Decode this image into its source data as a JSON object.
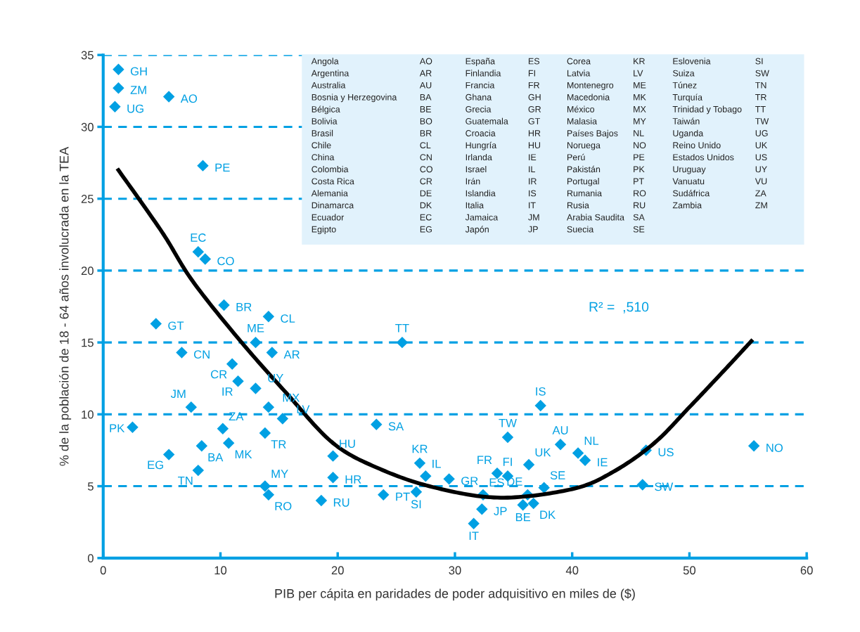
{
  "chart_data": {
    "type": "scatter",
    "xlabel": "PIB per cápita en paridades de poder adquisitivo en miles de ($)",
    "ylabel": "% de la población de 18 - 64 años involucrada en la TEA",
    "xlim": [
      0,
      60
    ],
    "xticks": [
      0,
      10,
      20,
      30,
      40,
      50,
      60
    ],
    "ylim": [
      0,
      35
    ],
    "yticks": [
      0,
      5,
      10,
      15,
      20,
      25,
      30,
      35
    ],
    "grid": "y",
    "series": [
      {
        "color": "#00a0e3",
        "marker": "diamond",
        "x": [
          1.3,
          1.3,
          1.0,
          5.6,
          8.5,
          8.1,
          8.7,
          10.3,
          4.5,
          14.1,
          13.0,
          6.7,
          14.4,
          11.0,
          11.5,
          13.0,
          14.1,
          15.3,
          7.5,
          2.5,
          10.2,
          13.8,
          10.7,
          8.4,
          5.6,
          8.1,
          19.6,
          19.6,
          13.8,
          14.1,
          18.6,
          23.3,
          25.5,
          23.9,
          26.7,
          27.0,
          27.5,
          29.5,
          32.4,
          32.3,
          31.6,
          33.6,
          34.5,
          34.5,
          37.3,
          36.3,
          36.2,
          35.8,
          36.7,
          37.6,
          39.0,
          40.5,
          41.1,
          46.3,
          46.0,
          55.5
        ],
        "values": [
          34.0,
          32.7,
          31.4,
          32.1,
          27.3,
          21.3,
          20.8,
          17.6,
          16.3,
          16.8,
          15.0,
          14.3,
          14.3,
          13.5,
          12.3,
          11.8,
          10.5,
          9.7,
          10.5,
          9.1,
          9.0,
          8.7,
          8.0,
          7.8,
          7.2,
          6.1,
          7.1,
          5.6,
          5.0,
          4.4,
          4.0,
          9.3,
          15.0,
          4.4,
          4.6,
          6.6,
          5.7,
          5.5,
          4.4,
          3.4,
          2.4,
          5.9,
          5.7,
          8.4,
          10.6,
          6.5,
          4.4,
          3.7,
          3.8,
          4.9,
          7.9,
          7.3,
          6.8,
          7.5,
          5.1,
          7.8
        ]
      },
      {
        "type": "line",
        "color": "#000000",
        "line_style": "solid",
        "x": [
          1.2,
          5.0,
          7.6,
          11.6,
          15.6,
          19.6,
          23.6,
          28.3,
          33.9,
          40.0,
          43.5,
          47.0,
          50.0,
          52.9,
          55.4
        ],
        "values": [
          27.1,
          22.7,
          19.3,
          15.2,
          11.5,
          8.0,
          6.2,
          4.9,
          4.2,
          4.8,
          6.0,
          8.0,
          10.5,
          13.0,
          15.2
        ]
      }
    ],
    "annotations": [
      "R² =  ,510",
      "Angola",
      "AO",
      "Argentina",
      "AR",
      "Australia",
      "AU",
      "Bosnia y Herzegovina",
      "BA",
      "Bélgica",
      "BE",
      "Bolivia",
      "BO",
      "Brasil",
      "BR",
      "Chile",
      "CL",
      "China",
      "CN",
      "Colombia",
      "CO",
      "Costa Rica",
      "CR",
      "Alemania",
      "DE",
      "Dinamarca",
      "DK",
      "Ecuador",
      "EC",
      "Egipto",
      "EG",
      "España",
      "ES",
      "Finlandia",
      "FI",
      "Francia",
      "FR",
      "Ghana",
      "GH",
      "Grecia",
      "GR",
      "Guatemala",
      "GT",
      "Croacia",
      "HR",
      "Hungría",
      "HU",
      "Irlanda",
      "IE",
      "Israel",
      "IL",
      "Irán",
      "IR",
      "Islandia",
      "IS",
      "Italia",
      "IT",
      "Jamaica",
      "JM",
      "Japón",
      "JP",
      "Corea",
      "KR",
      "Latvia",
      "LV",
      "Montenegro",
      "ME",
      "Macedonia",
      "MK",
      "México",
      "MX",
      "Malasia",
      "MY",
      "Países Bajos",
      "NL",
      "Noruega",
      "NO",
      "Perú",
      "PE",
      "Pakistán",
      "PK",
      "Portugal",
      "PT",
      "Rumania",
      "RO",
      "Rusia",
      "RU",
      "Arabia Saudita",
      "SA",
      "Suecia",
      "SE",
      "Eslovenia",
      "SI",
      "Suiza",
      "SW",
      "Túnez",
      "TN",
      "Turquía",
      "TR",
      "Trinidad y Tobago",
      "TT",
      "Taiwán",
      "TW",
      "Uganda",
      "UG",
      "Reino Unido",
      "UK",
      "Estados Unidos",
      "US",
      "Uruguay",
      "UY",
      "Vanuatu",
      "VU",
      "Sudáfrica",
      "ZA",
      "Zambia",
      "ZM",
      {
        "text": "GH",
        "x": 1.3,
        "y": 34.0
      },
      {
        "text": "ZM",
        "x": 1.3,
        "y": 32.7
      },
      {
        "text": "UG",
        "x": 1.0,
        "y": 31.4
      },
      {
        "text": "AO",
        "x": 5.6,
        "y": 32.1
      },
      {
        "text": "PE",
        "x": 8.5,
        "y": 27.3
      },
      {
        "text": "EC",
        "x": 8.1,
        "y": 21.3
      },
      {
        "text": "CO",
        "x": 8.7,
        "y": 20.8
      },
      {
        "text": "BR",
        "x": 10.3,
        "y": 17.6
      },
      {
        "text": "GT",
        "x": 4.5,
        "y": 16.3
      },
      {
        "text": "CL",
        "x": 14.1,
        "y": 16.8
      },
      {
        "text": "ME",
        "x": 13.0,
        "y": 15.0
      },
      {
        "text": "CN",
        "x": 6.7,
        "y": 14.3
      },
      {
        "text": "AR",
        "x": 14.4,
        "y": 14.3
      },
      {
        "text": "CR",
        "x": 11.0,
        "y": 13.5
      },
      {
        "text": "IR",
        "x": 11.5,
        "y": 12.3
      },
      {
        "text": "UY",
        "x": 13.0,
        "y": 11.8
      },
      {
        "text": "MX",
        "x": 14.1,
        "y": 10.5
      },
      {
        "text": "LV",
        "x": 15.3,
        "y": 9.7
      },
      {
        "text": "JM",
        "x": 7.5,
        "y": 10.5
      },
      {
        "text": "PK",
        "x": 2.5,
        "y": 9.1
      },
      {
        "text": "ZA",
        "x": 10.2,
        "y": 9.0
      },
      {
        "text": "TR",
        "x": 13.8,
        "y": 8.7
      },
      {
        "text": "MK",
        "x": 10.7,
        "y": 8.0
      },
      {
        "text": "BA",
        "x": 8.4,
        "y": 7.8
      },
      {
        "text": "EG",
        "x": 5.6,
        "y": 7.2
      },
      {
        "text": "TN",
        "x": 8.1,
        "y": 6.1
      },
      {
        "text": "HU",
        "x": 19.6,
        "y": 7.1
      },
      {
        "text": "HR",
        "x": 19.6,
        "y": 5.6
      },
      {
        "text": "MY",
        "x": 13.8,
        "y": 5.0
      },
      {
        "text": "RO",
        "x": 14.1,
        "y": 4.4
      },
      {
        "text": "RU",
        "x": 18.6,
        "y": 4.0
      },
      {
        "text": "SA",
        "x": 23.3,
        "y": 9.3
      },
      {
        "text": "TT",
        "x": 25.5,
        "y": 15.0
      },
      {
        "text": "PT",
        "x": 23.9,
        "y": 4.4
      },
      {
        "text": "SI",
        "x": 26.7,
        "y": 4.6
      },
      {
        "text": "KR",
        "x": 27.0,
        "y": 6.6
      },
      {
        "text": "IL",
        "x": 27.5,
        "y": 5.7
      },
      {
        "text": "GR",
        "x": 29.5,
        "y": 5.5
      },
      {
        "text": "ES",
        "x": 32.4,
        "y": 4.4
      },
      {
        "text": "JP",
        "x": 32.3,
        "y": 3.4
      },
      {
        "text": "IT",
        "x": 31.6,
        "y": 2.4
      },
      {
        "text": "FR",
        "x": 33.6,
        "y": 5.9
      },
      {
        "text": "FI",
        "x": 34.5,
        "y": 5.7
      },
      {
        "text": "TW",
        "x": 34.5,
        "y": 8.4
      },
      {
        "text": "IS",
        "x": 37.3,
        "y": 10.6
      },
      {
        "text": "UK",
        "x": 36.3,
        "y": 6.5
      },
      {
        "text": "DE",
        "x": 36.2,
        "y": 4.4
      },
      {
        "text": "BE",
        "x": 35.8,
        "y": 3.7
      },
      {
        "text": "DK",
        "x": 36.7,
        "y": 3.8
      },
      {
        "text": "SE",
        "x": 37.6,
        "y": 4.9
      },
      {
        "text": "AU",
        "x": 39.0,
        "y": 7.9
      },
      {
        "text": "NL",
        "x": 40.5,
        "y": 7.3
      },
      {
        "text": "IE",
        "x": 41.1,
        "y": 6.8
      },
      {
        "text": "US",
        "x": 46.3,
        "y": 7.5
      },
      {
        "text": "SW",
        "x": 46.0,
        "y": 5.1
      },
      {
        "text": "NO",
        "x": 55.5,
        "y": 7.8
      }
    ]
  }
}
